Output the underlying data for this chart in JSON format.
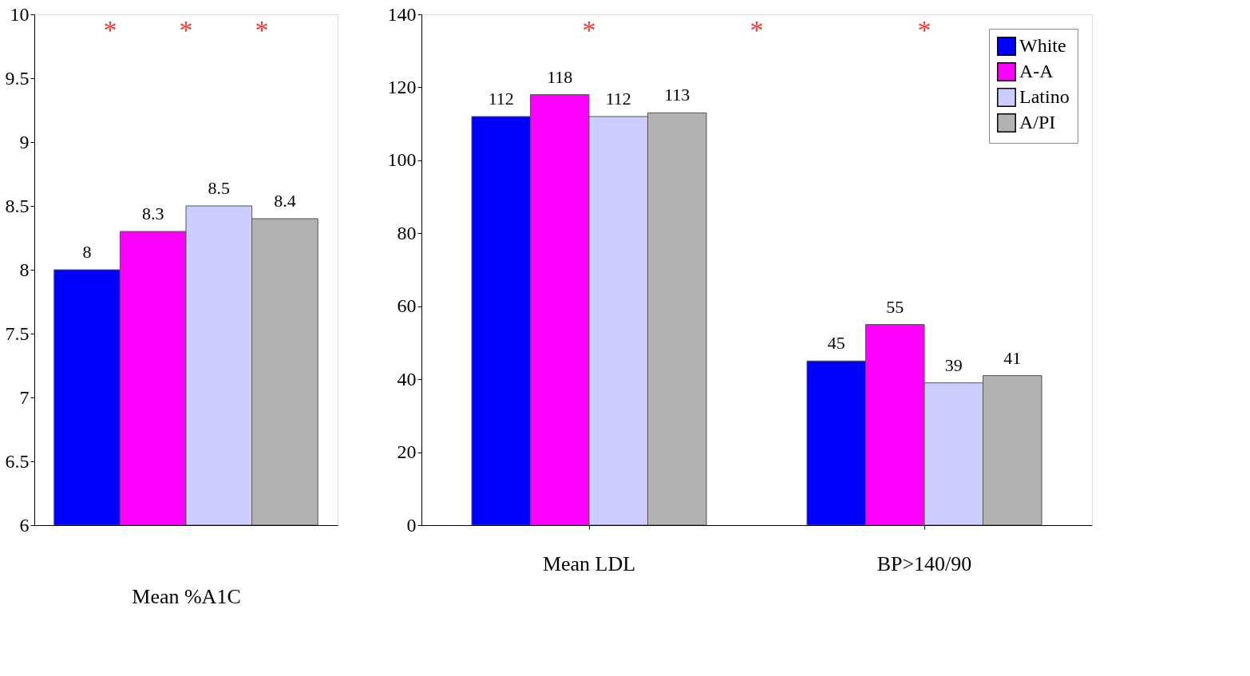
{
  "chart_data": [
    {
      "type": "bar",
      "categories": [
        null,
        null,
        null,
        null
      ],
      "xlabel": "Mean %A1C",
      "values": [
        8,
        8.3,
        8.5,
        8.4
      ],
      "colors": [
        "#0000ff",
        "#ff00ff",
        "#ccccff",
        "#b2b2b2"
      ],
      "ylim": [
        6,
        10
      ],
      "yticks": [
        6,
        6.5,
        7,
        7.5,
        8,
        8.5,
        9,
        9.5,
        10
      ],
      "data_labels": true,
      "grid": false,
      "annotations": [
        "*",
        "*",
        "*"
      ]
    },
    {
      "type": "bar",
      "categories": [
        "Mean LDL",
        "BP>140/90"
      ],
      "series": [
        {
          "name": "White",
          "color": "#0000ff",
          "values": [
            112,
            45
          ]
        },
        {
          "name": "A-A",
          "color": "#ff00ff",
          "values": [
            118,
            55
          ]
        },
        {
          "name": "Latino",
          "color": "#ccccff",
          "values": [
            112,
            39
          ]
        },
        {
          "name": "A/PI",
          "color": "#b2b2b2",
          "values": [
            113,
            41
          ]
        }
      ],
      "ylim": [
        0,
        140
      ],
      "yticks": [
        0,
        20,
        40,
        60,
        80,
        100,
        120,
        140
      ],
      "data_labels": true,
      "grid": false,
      "legend": "top right",
      "annotations": [
        "*",
        "*",
        "*"
      ]
    }
  ]
}
